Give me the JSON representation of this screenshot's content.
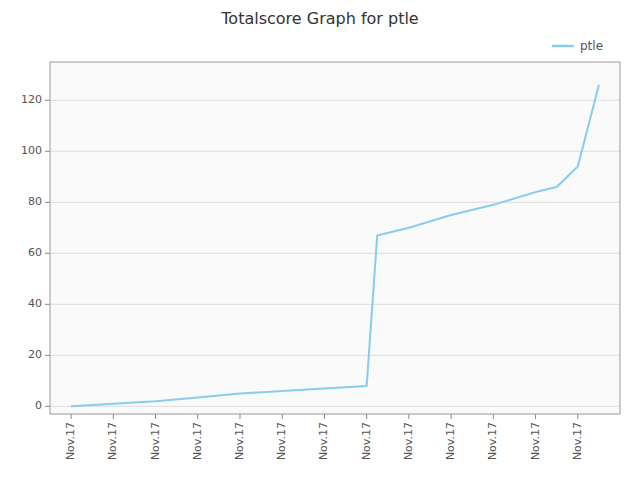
{
  "chart_data": {
    "type": "line",
    "title": "Totalscore Graph for ptle",
    "x": [
      0,
      1,
      2,
      3,
      4,
      5,
      6,
      7,
      7.25,
      8,
      9,
      10,
      11,
      11.5,
      12,
      12.5
    ],
    "series": [
      {
        "name": "ptle",
        "color": "#88CCEE",
        "values": [
          0.0,
          1.0,
          2.0,
          3.5,
          5.0,
          6.0,
          7.0,
          8.0,
          67.0,
          70.0,
          75.0,
          79.0,
          84.0,
          86.0,
          94.0,
          126.0
        ]
      }
    ],
    "xlim": [
      -0.5,
      13.0
    ],
    "xticks": [
      {
        "value": 0,
        "label": "Nov.17"
      },
      {
        "value": 1,
        "label": "Nov.17"
      },
      {
        "value": 2,
        "label": "Nov.17"
      },
      {
        "value": 3,
        "label": "Nov.17"
      },
      {
        "value": 4,
        "label": "Nov.17"
      },
      {
        "value": 5,
        "label": "Nov.17"
      },
      {
        "value": 6,
        "label": "Nov.17"
      },
      {
        "value": 7,
        "label": "Nov.17"
      },
      {
        "value": 8,
        "label": "Nov.17"
      },
      {
        "value": 9,
        "label": "Nov.17"
      },
      {
        "value": 10,
        "label": "Nov.17"
      },
      {
        "value": 11,
        "label": "Nov.17"
      },
      {
        "value": 12,
        "label": "Nov.17"
      }
    ],
    "ylim": [
      -3,
      135
    ],
    "yticks": [
      0,
      20,
      40,
      60,
      80,
      100,
      120
    ],
    "grid": true,
    "legend": "upper right"
  }
}
